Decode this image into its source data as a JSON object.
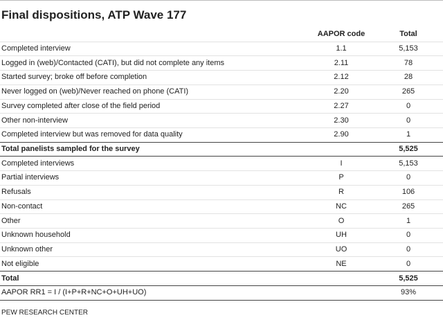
{
  "title": "Final dispositions, ATP Wave 177",
  "table": {
    "columns": [
      "AAPOR code",
      "Total"
    ],
    "rows": [
      {
        "label": "Completed interview",
        "code": "1.1",
        "total": "5,153"
      },
      {
        "label": "Logged in (web)/Contacted (CATI), but did not complete any items",
        "code": "2.11",
        "total": "78"
      },
      {
        "label": "Started survey; broke off before completion",
        "code": "2.12",
        "total": "28"
      },
      {
        "label": "Never logged on (web)/Never reached on phone (CATI)",
        "code": "2.20",
        "total": "265"
      },
      {
        "label": "Survey completed after close of the field period",
        "code": "2.27",
        "total": "0"
      },
      {
        "label": "Other non-interview",
        "code": "2.30",
        "total": "0"
      },
      {
        "label": "Completed interview but was removed for data quality",
        "code": "2.90",
        "total": "1"
      },
      {
        "label": "Total panelists sampled for the survey",
        "total": "5,525",
        "bold": true
      },
      {
        "label": "Completed interviews",
        "code": "I",
        "total": "5,153"
      },
      {
        "label": "Partial interviews",
        "code": "P",
        "total": "0"
      },
      {
        "label": "Refusals",
        "code": "R",
        "total": "106"
      },
      {
        "label": "Non-contact",
        "code": "NC",
        "total": "265"
      },
      {
        "label": "Other",
        "code": "O",
        "total": "1"
      },
      {
        "label": "Unknown household",
        "code": "UH",
        "total": "0"
      },
      {
        "label": "Unknown other",
        "code": "UO",
        "total": "0"
      },
      {
        "label": "Not eligible",
        "code": "NE",
        "total": "0"
      },
      {
        "label": "Total",
        "total": "5,525",
        "bold": true
      },
      {
        "label": "AAPOR RR1 = I / (I+P+R+NC+O+UH+UO)",
        "total": "93%"
      }
    ]
  },
  "source": "PEW RESEARCH CENTER"
}
